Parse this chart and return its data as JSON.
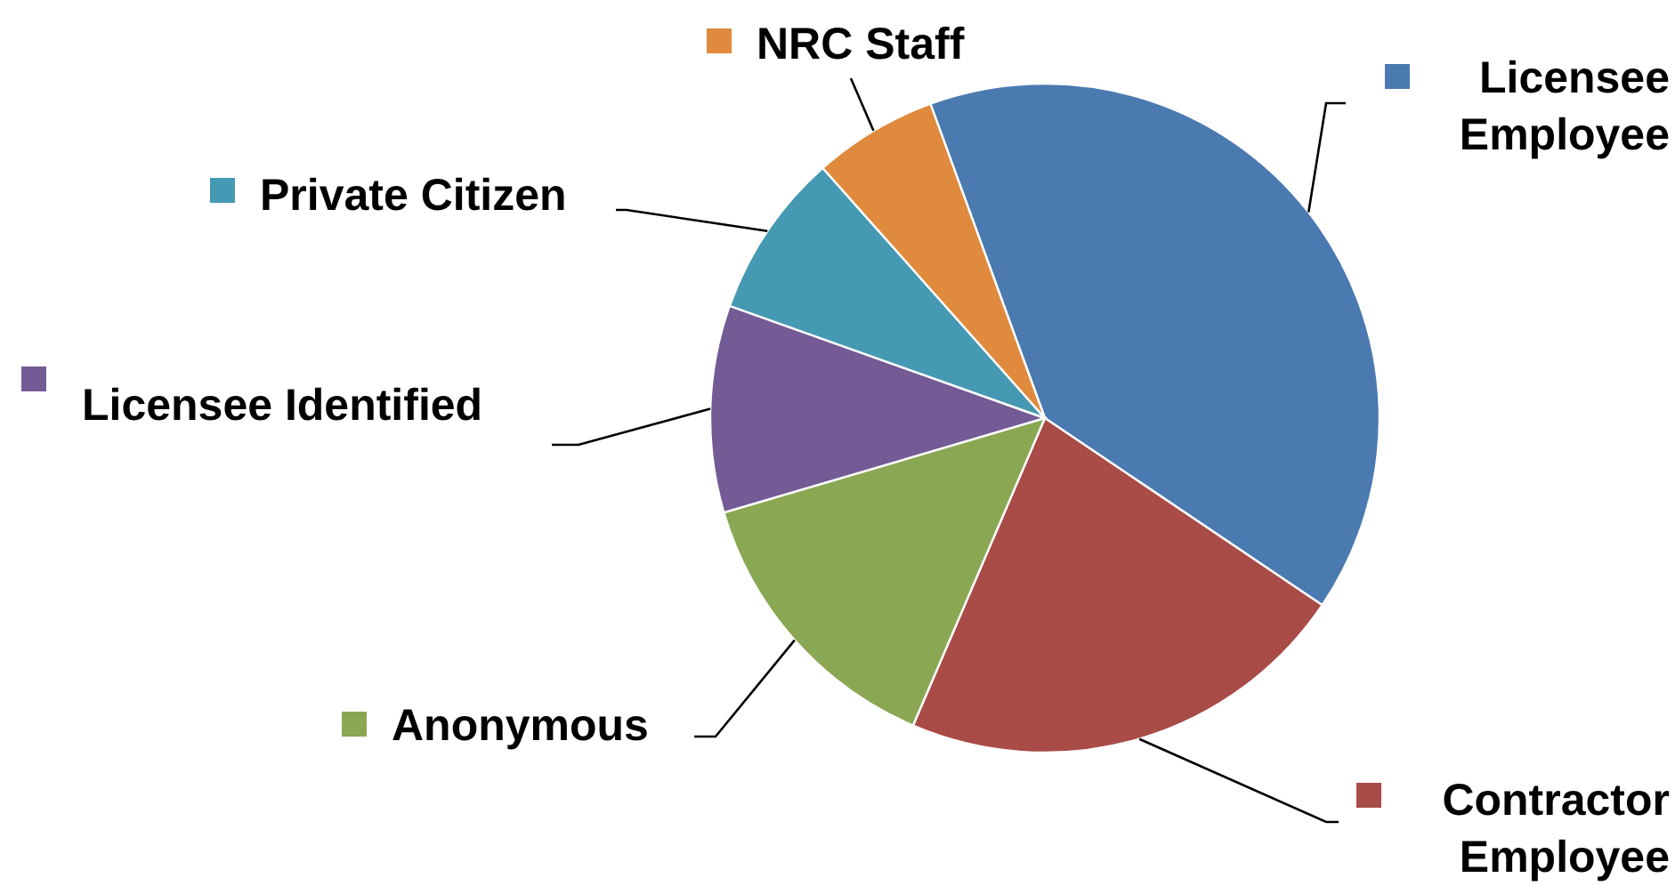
{
  "chart_data": {
    "type": "pie",
    "categories": [
      "Licensee Employee",
      "Contractor Employee",
      "Anonymous",
      "Licensee Identified",
      "Private Citizen",
      "NRC Staff"
    ],
    "values": [
      40,
      22,
      14,
      10,
      8,
      6
    ],
    "colors": [
      "#4a7ab0",
      "#a94b47",
      "#8aa853",
      "#745b95",
      "#4699b3",
      "#e08a3e"
    ],
    "legend": "left"
  }
}
